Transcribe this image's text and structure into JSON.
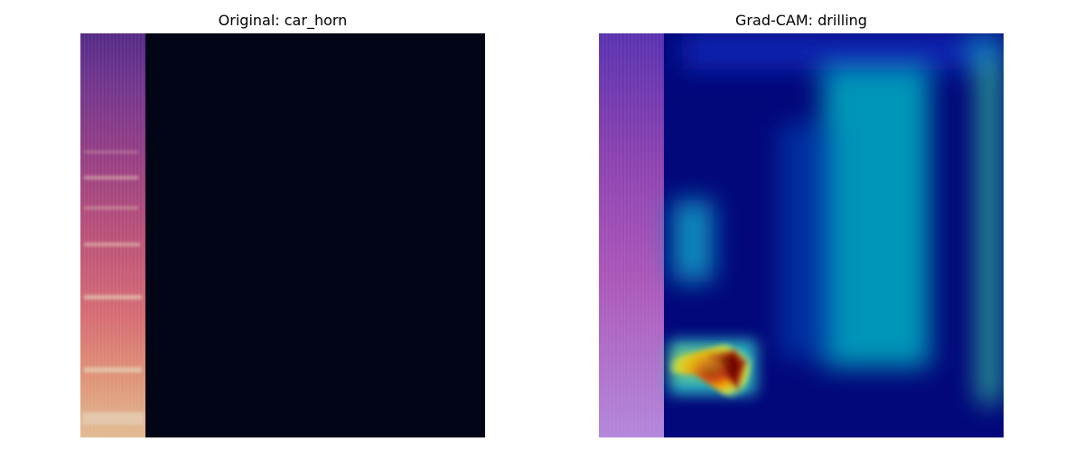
{
  "figure": {
    "panels": [
      {
        "title": "Original: car_horn",
        "content": "mel spectrogram",
        "colormap": "magma"
      },
      {
        "title": "Grad-CAM: drilling",
        "content": "Grad-CAM heatmap overlaid on mel spectrogram",
        "colormap": "jet"
      }
    ]
  }
}
